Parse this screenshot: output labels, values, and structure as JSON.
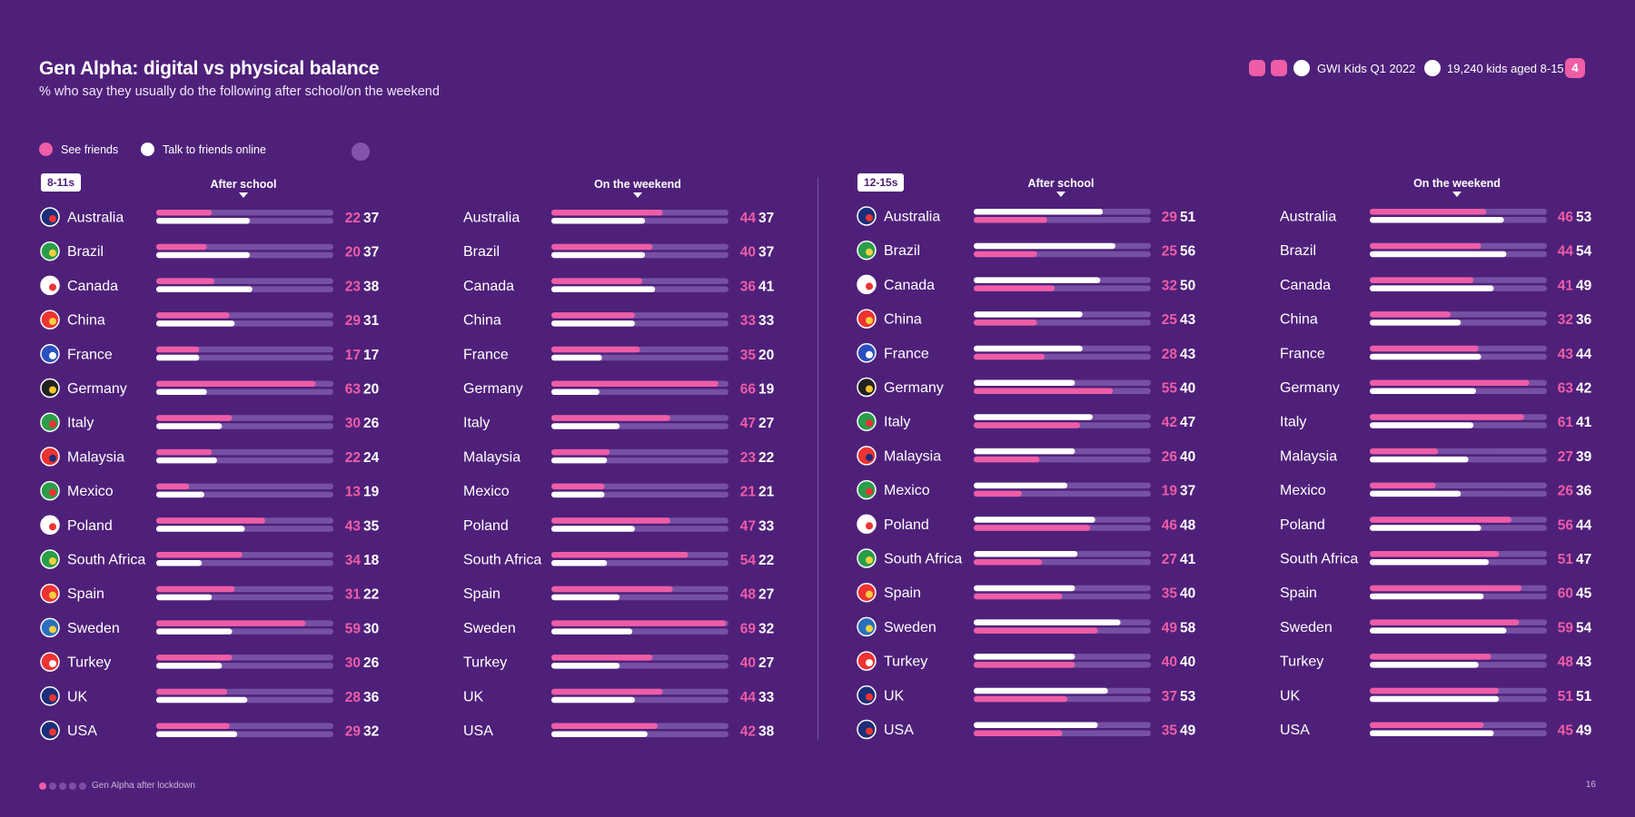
{
  "header": {
    "title": "Gen Alpha: digital vs physical balance",
    "subtitle": "% who say they usually do the following after school/on the weekend",
    "source": "GWI Kids Q1 2022",
    "sample": "19,240 kids aged 8-15",
    "badge": "4"
  },
  "legend": {
    "see_friends": "See friends",
    "talk_online": "Talk to friends online"
  },
  "colors": {
    "see_friends": "#ee5da6",
    "talk_online": "#ffffff",
    "track": "#7650a3",
    "background": "#4f207a"
  },
  "footer": {
    "text": "Gen Alpha after lockdown",
    "page": "16"
  },
  "chart_data": [
    {
      "type": "bar",
      "age_group": "8-11s",
      "period": "After school",
      "categories": [
        "Australia",
        "Brazil",
        "Canada",
        "China",
        "France",
        "Germany",
        "Italy",
        "Malaysia",
        "Mexico",
        "Poland",
        "South Africa",
        "Spain",
        "Sweden",
        "Turkey",
        "UK",
        "USA"
      ],
      "series": [
        {
          "name": "See friends",
          "values": [
            22,
            20,
            23,
            29,
            17,
            63,
            30,
            22,
            13,
            43,
            34,
            31,
            59,
            30,
            28,
            29
          ]
        },
        {
          "name": "Talk to friends online",
          "values": [
            37,
            37,
            38,
            31,
            17,
            20,
            26,
            24,
            19,
            35,
            18,
            22,
            30,
            26,
            36,
            32
          ]
        }
      ],
      "xlim": [
        0,
        70
      ]
    },
    {
      "type": "bar",
      "age_group": "8-11s",
      "period": "On the weekend",
      "categories": [
        "Australia",
        "Brazil",
        "Canada",
        "China",
        "France",
        "Germany",
        "Italy",
        "Malaysia",
        "Mexico",
        "Poland",
        "South Africa",
        "Spain",
        "Sweden",
        "Turkey",
        "UK",
        "USA"
      ],
      "series": [
        {
          "name": "See friends",
          "values": [
            44,
            40,
            36,
            33,
            35,
            66,
            47,
            23,
            21,
            47,
            54,
            48,
            69,
            40,
            44,
            42
          ]
        },
        {
          "name": "Talk to friends online",
          "values": [
            37,
            37,
            41,
            33,
            20,
            19,
            27,
            22,
            21,
            33,
            22,
            27,
            32,
            27,
            33,
            38
          ]
        }
      ],
      "xlim": [
        0,
        70
      ]
    },
    {
      "type": "bar",
      "age_group": "12-15s",
      "period": "After school",
      "categories": [
        "Australia",
        "Brazil",
        "Canada",
        "China",
        "France",
        "Germany",
        "Italy",
        "Malaysia",
        "Mexico",
        "Poland",
        "South Africa",
        "Spain",
        "Sweden",
        "Turkey",
        "UK",
        "USA"
      ],
      "series": [
        {
          "name": "See friends",
          "values": [
            29,
            25,
            32,
            25,
            28,
            55,
            42,
            26,
            19,
            46,
            27,
            35,
            49,
            40,
            37,
            35
          ]
        },
        {
          "name": "Talk to friends online",
          "values": [
            51,
            56,
            50,
            43,
            43,
            40,
            47,
            40,
            37,
            48,
            41,
            40,
            58,
            40,
            53,
            49
          ]
        }
      ],
      "xlim": [
        0,
        70
      ]
    },
    {
      "type": "bar",
      "age_group": "12-15s",
      "period": "On the weekend",
      "categories": [
        "Australia",
        "Brazil",
        "Canada",
        "China",
        "France",
        "Germany",
        "Italy",
        "Malaysia",
        "Mexico",
        "Poland",
        "South Africa",
        "Spain",
        "Sweden",
        "Turkey",
        "UK",
        "USA"
      ],
      "series": [
        {
          "name": "See friends",
          "values": [
            46,
            44,
            41,
            32,
            43,
            63,
            61,
            27,
            26,
            56,
            51,
            60,
            59,
            48,
            51,
            45
          ]
        },
        {
          "name": "Talk to friends online",
          "values": [
            53,
            54,
            49,
            36,
            44,
            42,
            41,
            39,
            36,
            44,
            47,
            45,
            54,
            43,
            51,
            49
          ]
        }
      ],
      "xlim": [
        0,
        70
      ]
    }
  ]
}
